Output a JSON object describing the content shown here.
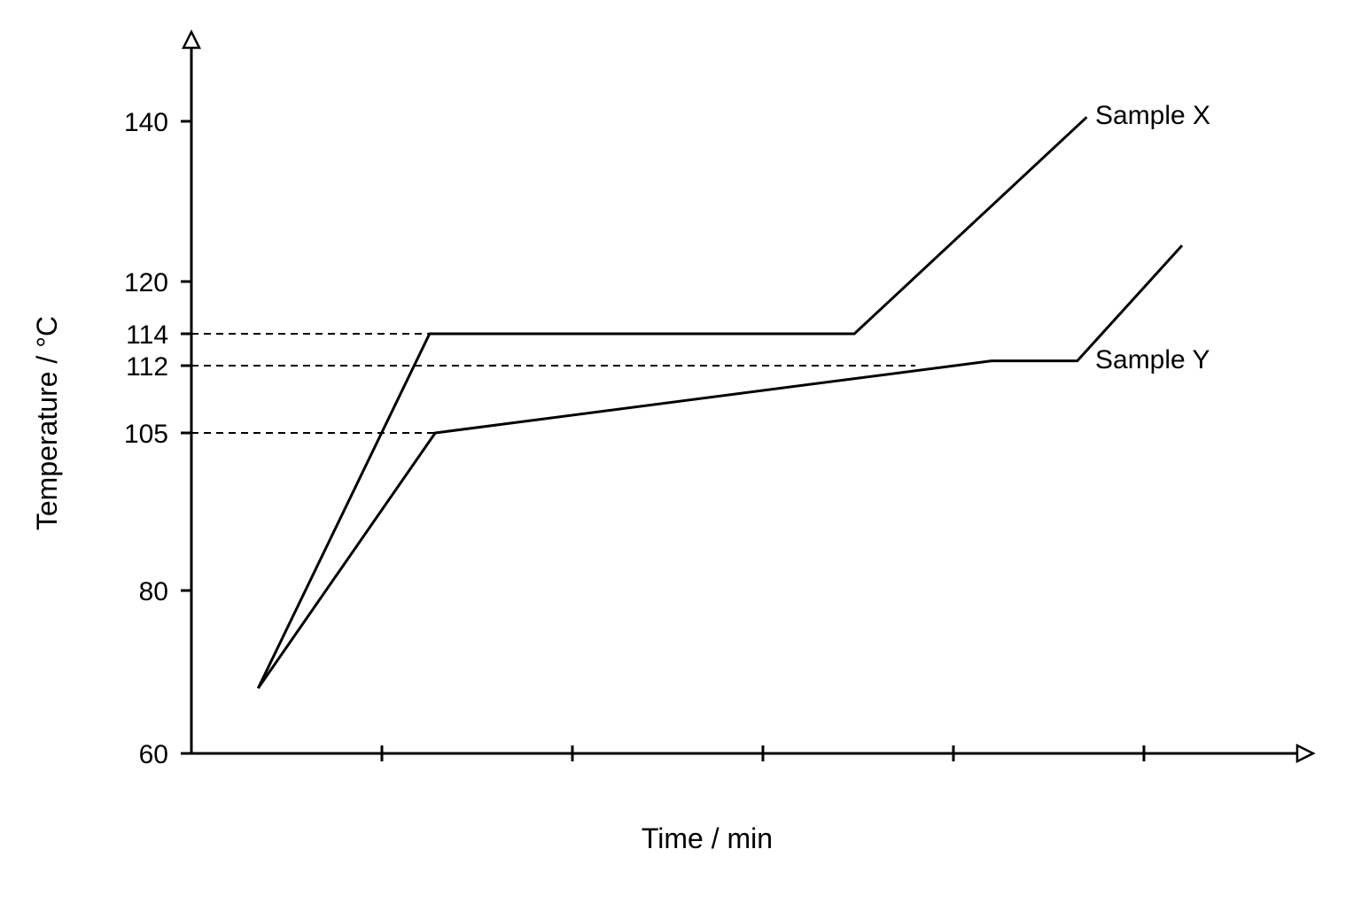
{
  "chart_data": {
    "type": "line",
    "title": "",
    "xlabel": "Time / min",
    "ylabel": "Temperature / °C",
    "ylim": [
      60,
      150
    ],
    "xlim": [
      0,
      6.1
    ],
    "y_ticks": [
      60,
      80,
      105,
      112,
      114,
      120,
      140
    ],
    "x_tick_positions": [
      1,
      2,
      3,
      4,
      5
    ],
    "x_tick_labels": [],
    "reference_lines": [
      {
        "y": 114,
        "x_end": 1.25,
        "style": "dashed"
      },
      {
        "y": 112,
        "x_end": 3.8,
        "style": "dashed"
      },
      {
        "y": 105,
        "x_end": 1.28,
        "style": "dashed"
      }
    ],
    "series": [
      {
        "name": "Sample X",
        "x": [
          0.35,
          1.25,
          3.48,
          4.7
        ],
        "y": [
          68,
          114,
          114,
          140.5
        ]
      },
      {
        "name": "Sample Y",
        "x": [
          0.35,
          1.28,
          4.2,
          4.65,
          5.2
        ],
        "y": [
          68,
          105,
          112.3,
          112.3,
          124.5
        ]
      }
    ],
    "grid": false,
    "legend": "none"
  }
}
